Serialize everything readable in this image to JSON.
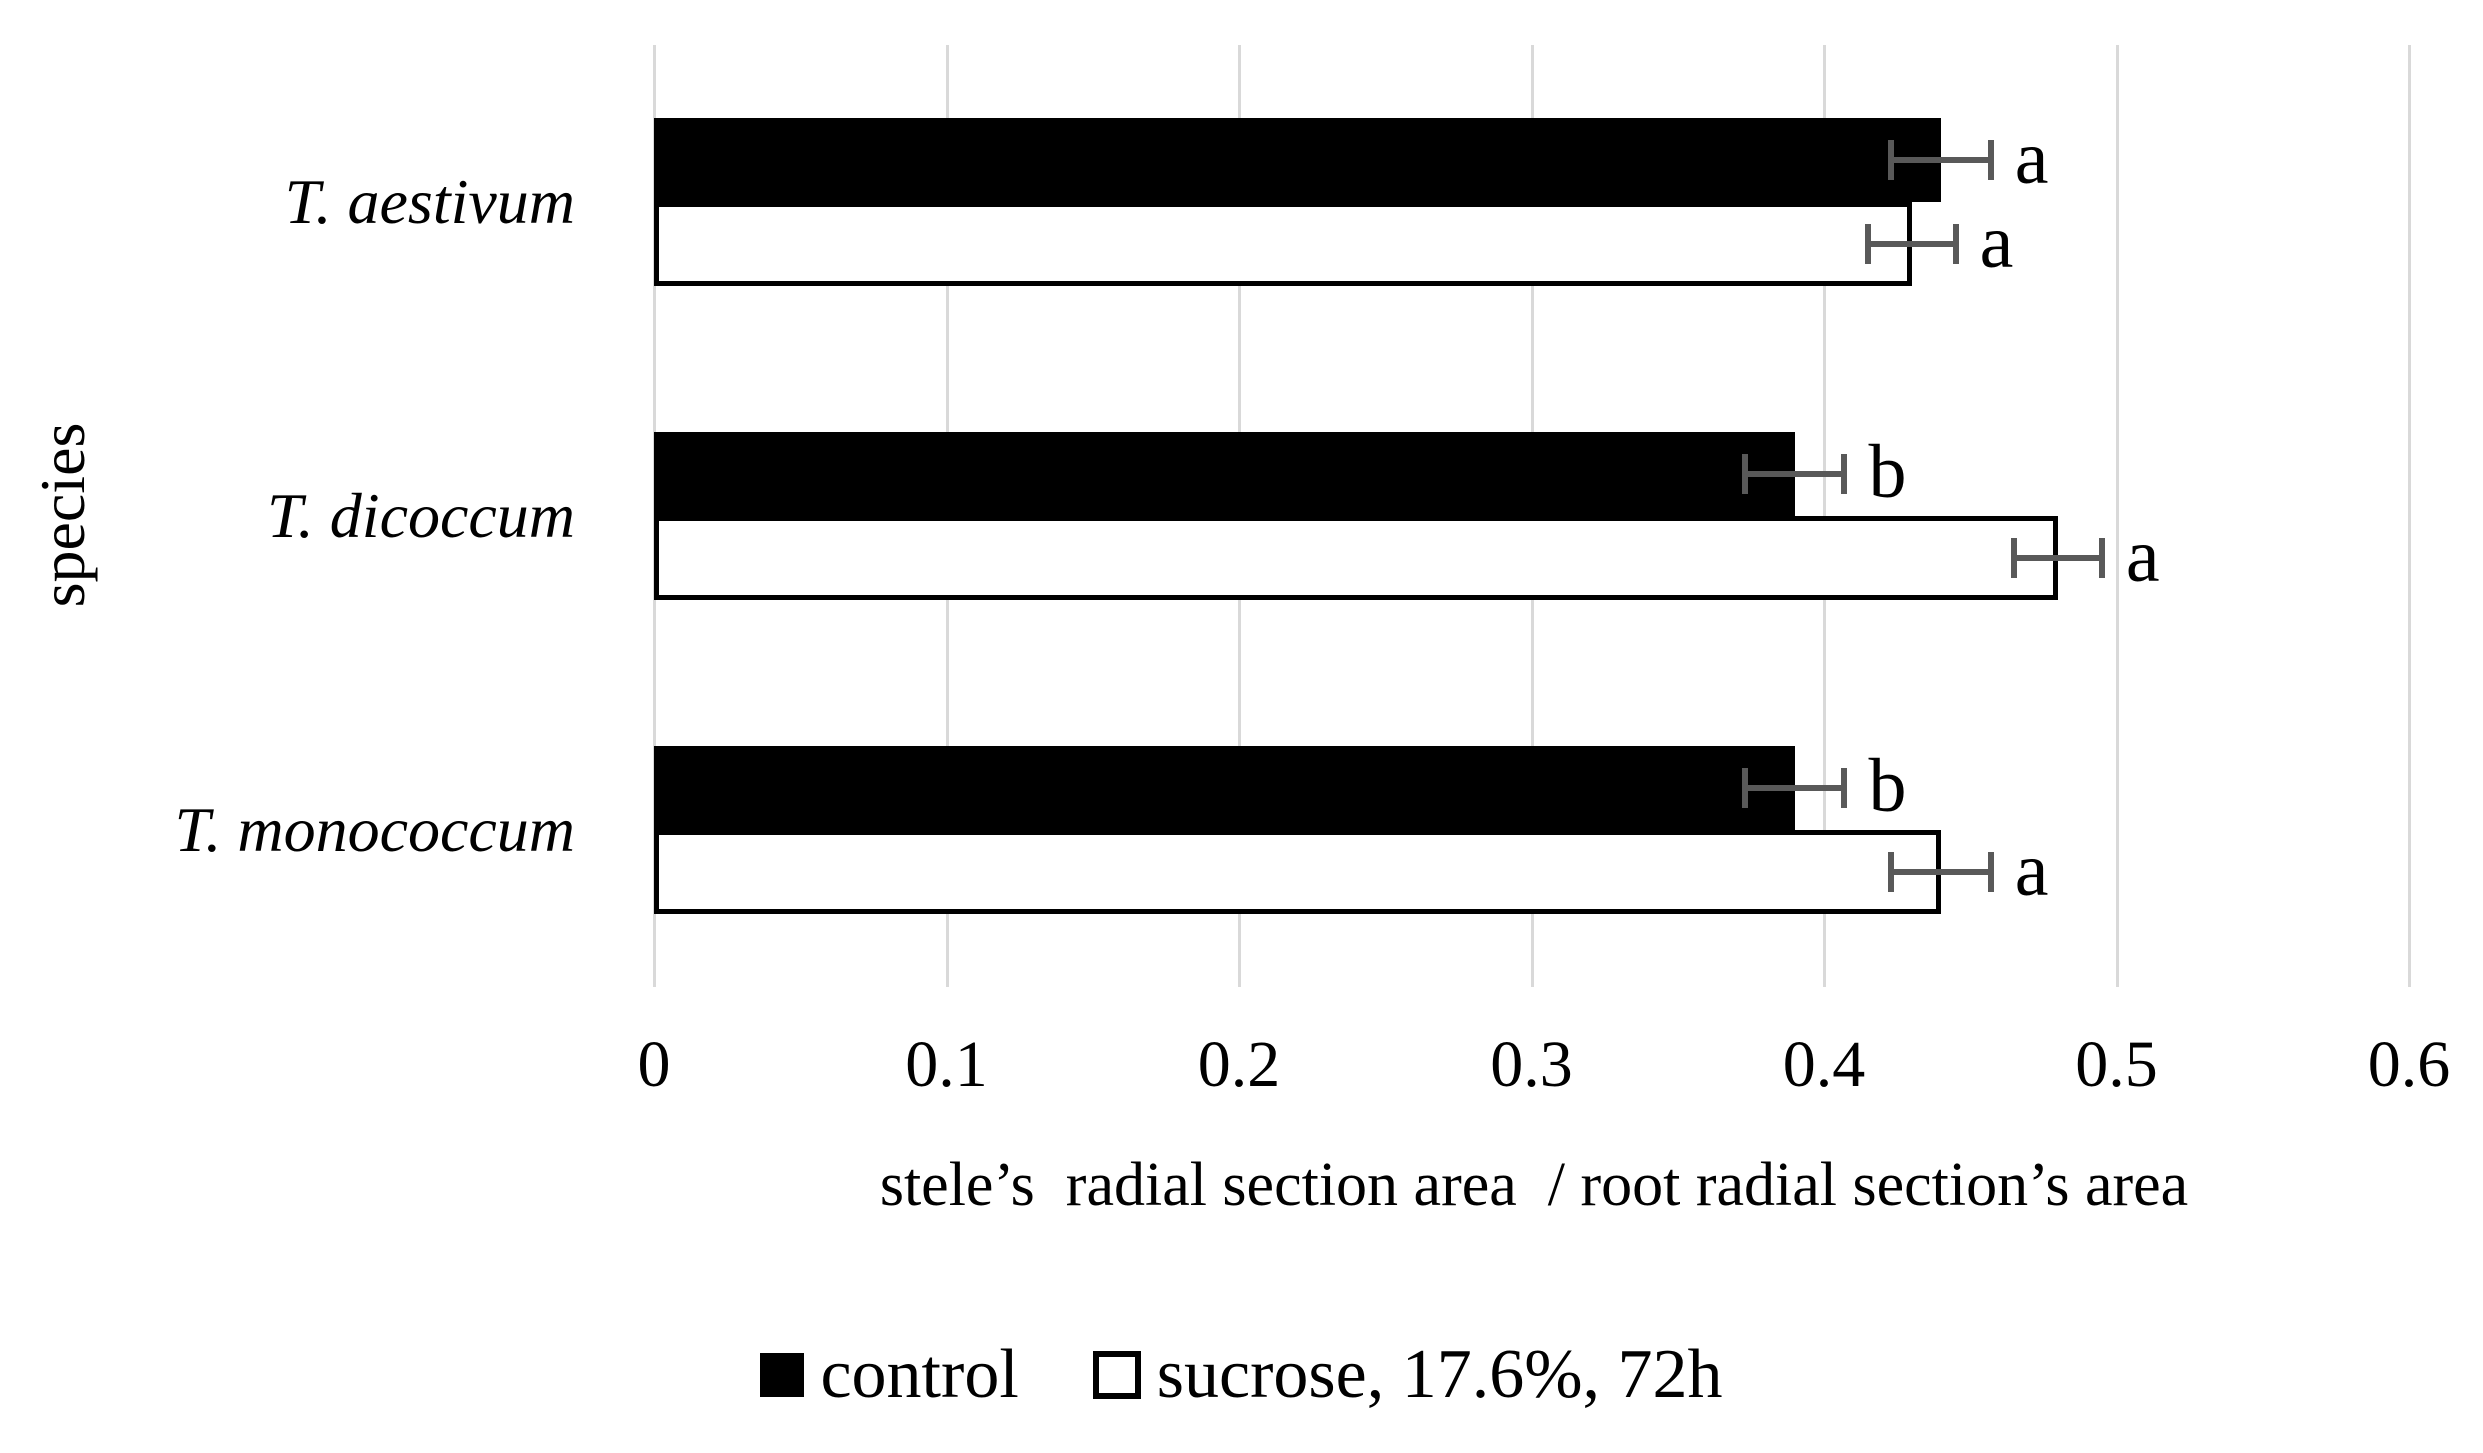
{
  "figure": {
    "x_axis_title": "stele’s  radial section area  / root radial section’s area",
    "y_axis_title": "species"
  },
  "legend": {
    "items": [
      {
        "label": "control",
        "swatch": "black-filled-square"
      },
      {
        "label": "sucrose, 17.6%, 72h",
        "swatch": "white-outlined-square"
      }
    ]
  },
  "chart_data": {
    "type": "bar",
    "orientation": "horizontal",
    "title": "",
    "xlabel": "stele’s  radial section area  / root radial section’s area",
    "ylabel": "species",
    "categories": [
      "T. aestivum",
      "T. dicoccum",
      "T. monococcum"
    ],
    "series": [
      {
        "name": "control",
        "style": "filled",
        "fill": "#000000",
        "values": [
          0.44,
          0.39,
          0.39
        ],
        "errors": [
          0.017,
          0.017,
          0.017
        ],
        "sig_letters": [
          "a",
          "b",
          "b"
        ]
      },
      {
        "name": "sucrose, 17.6%, 72h",
        "style": "outlined",
        "fill": "#ffffff",
        "values": [
          0.43,
          0.48,
          0.44
        ],
        "errors": [
          0.015,
          0.015,
          0.017
        ],
        "sig_letters": [
          "a",
          "a",
          "a"
        ]
      }
    ],
    "xlim": [
      0,
      0.6
    ],
    "xticks": [
      0,
      0.1,
      0.2,
      0.3,
      0.4,
      0.5,
      0.6
    ],
    "xtick_labels": [
      "0",
      "0.1",
      "0.2",
      "0.3",
      "0.4",
      "0.5",
      "0.6"
    ],
    "grid": "vertical gridlines only",
    "legend_position": "bottom",
    "colors": {
      "gridline": "#d9d9d9",
      "error_bar": "#595959",
      "bar_control": "#000000",
      "bar_sucrose_fill": "#ffffff",
      "bar_sucrose_border": "#000000",
      "text": "#000000"
    }
  }
}
